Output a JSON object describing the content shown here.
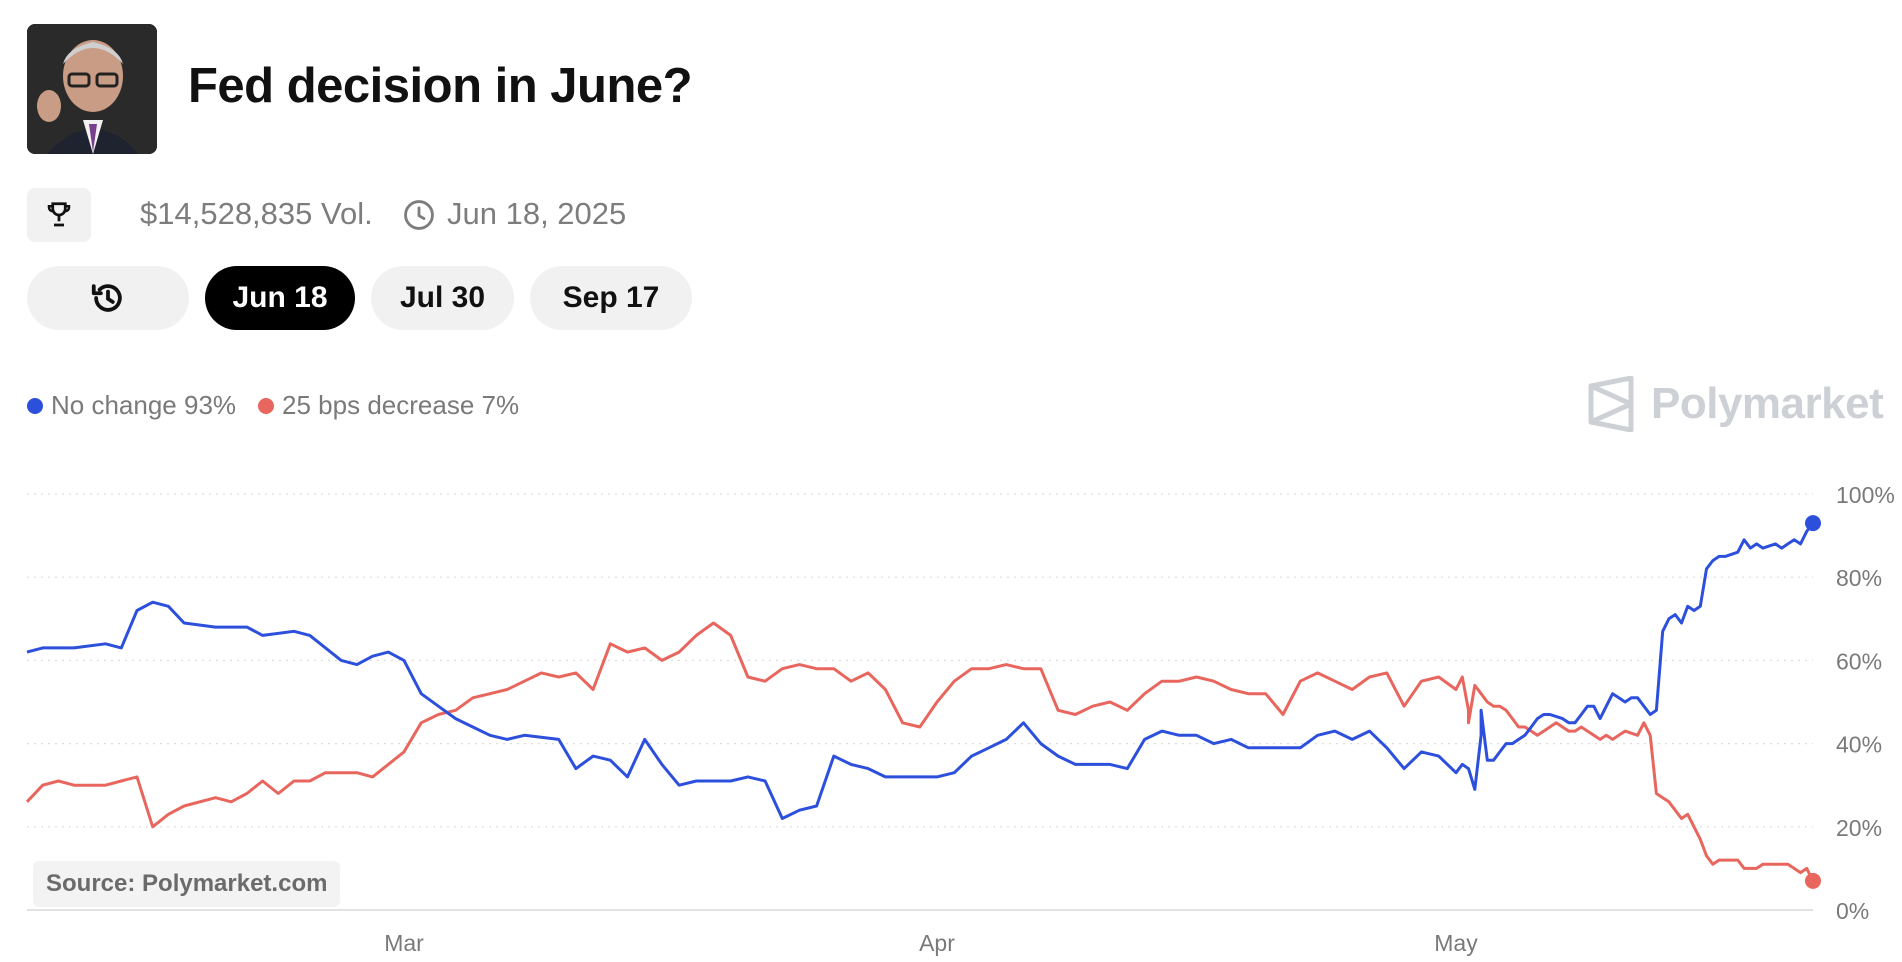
{
  "header": {
    "title": "Fed decision in June?",
    "volume": "$14,528,835 Vol.",
    "end_date": "Jun 18, 2025"
  },
  "icons": {
    "trophy": "trophy-icon",
    "clock": "clock-icon",
    "history": "history-icon",
    "brand": "polymarket-logo-icon"
  },
  "tabs": [
    {
      "label": "",
      "icon": "history-icon",
      "active": false
    },
    {
      "label": "Jun 18",
      "active": true
    },
    {
      "label": "Jul 30",
      "active": false
    },
    {
      "label": "Sep 17",
      "active": false
    }
  ],
  "brand": "Polymarket",
  "source": "Source: Polymarket.com",
  "colors": {
    "no_change": "#2d50dc",
    "decrease": "#e8665d",
    "grid": "#dcdcdc",
    "tick": "#7a7a7a"
  },
  "chart_data": {
    "type": "line",
    "x_start": "2025-02-05",
    "x_end": "2025-05-23",
    "x_ticks": [
      {
        "date": "2025-03-01",
        "label": "Mar"
      },
      {
        "date": "2025-04-01",
        "label": "Apr"
      },
      {
        "date": "2025-05-01",
        "label": "May"
      }
    ],
    "y_ticks": [
      "0%",
      "20%",
      "40%",
      "60%",
      "80%",
      "100%"
    ],
    "ylim": [
      0,
      100
    ],
    "grid": true,
    "legend_placement": "top-left",
    "series": [
      {
        "name": "No change",
        "label": "No change 93%",
        "color": "#2d50dc",
        "points": [
          [
            "2025-02-05",
            62
          ],
          [
            "2025-02-06",
            63
          ],
          [
            "2025-02-08",
            63
          ],
          [
            "2025-02-10",
            64
          ],
          [
            "2025-02-11",
            63
          ],
          [
            "2025-02-12",
            72
          ],
          [
            "2025-02-13",
            74
          ],
          [
            "2025-02-14",
            73
          ],
          [
            "2025-02-15",
            69
          ],
          [
            "2025-02-17",
            68
          ],
          [
            "2025-02-19",
            68
          ],
          [
            "2025-02-20",
            66
          ],
          [
            "2025-02-22",
            67
          ],
          [
            "2025-02-23",
            66
          ],
          [
            "2025-02-24",
            63
          ],
          [
            "2025-02-25",
            60
          ],
          [
            "2025-02-26",
            59
          ],
          [
            "2025-02-27",
            61
          ],
          [
            "2025-02-28",
            62
          ],
          [
            "2025-03-01",
            60
          ],
          [
            "2025-03-02",
            52
          ],
          [
            "2025-03-03",
            49
          ],
          [
            "2025-03-04",
            46
          ],
          [
            "2025-03-05",
            44
          ],
          [
            "2025-03-06",
            42
          ],
          [
            "2025-03-07",
            41
          ],
          [
            "2025-03-08",
            42
          ],
          [
            "2025-03-10",
            41
          ],
          [
            "2025-03-11",
            34
          ],
          [
            "2025-03-12",
            37
          ],
          [
            "2025-03-13",
            36
          ],
          [
            "2025-03-14",
            32
          ],
          [
            "2025-03-15",
            41
          ],
          [
            "2025-03-16",
            35
          ],
          [
            "2025-03-17",
            30
          ],
          [
            "2025-03-18",
            31
          ],
          [
            "2025-03-20",
            31
          ],
          [
            "2025-03-21",
            32
          ],
          [
            "2025-03-22",
            31
          ],
          [
            "2025-03-23",
            22
          ],
          [
            "2025-03-24",
            24
          ],
          [
            "2025-03-25",
            25
          ],
          [
            "2025-03-26",
            37
          ],
          [
            "2025-03-27",
            35
          ],
          [
            "2025-03-28",
            34
          ],
          [
            "2025-03-29",
            32
          ],
          [
            "2025-03-31",
            32
          ],
          [
            "2025-04-01",
            32
          ],
          [
            "2025-04-02",
            33
          ],
          [
            "2025-04-03",
            37
          ],
          [
            "2025-04-04",
            39
          ],
          [
            "2025-04-05",
            41
          ],
          [
            "2025-04-06",
            45
          ],
          [
            "2025-04-07",
            40
          ],
          [
            "2025-04-08",
            37
          ],
          [
            "2025-04-09",
            35
          ],
          [
            "2025-04-11",
            35
          ],
          [
            "2025-04-12",
            34
          ],
          [
            "2025-04-13",
            41
          ],
          [
            "2025-04-14",
            43
          ],
          [
            "2025-04-15",
            42
          ],
          [
            "2025-04-16",
            42
          ],
          [
            "2025-04-17",
            40
          ],
          [
            "2025-04-18",
            41
          ],
          [
            "2025-04-19",
            39
          ],
          [
            "2025-04-20",
            39
          ],
          [
            "2025-04-22",
            39
          ],
          [
            "2025-04-23",
            42
          ],
          [
            "2025-04-24",
            43
          ],
          [
            "2025-04-25",
            41
          ],
          [
            "2025-04-26",
            43
          ],
          [
            "2025-04-27",
            39
          ],
          [
            "2025-04-28",
            34
          ],
          [
            "2025-04-29",
            38
          ],
          [
            "2025-04-30",
            37
          ],
          [
            "2025-05-01",
            33
          ],
          [
            "2025-05-02",
            35
          ],
          [
            "2025-05-03",
            34
          ],
          [
            "2025-05-04",
            29
          ],
          [
            "2025-05-05",
            42
          ],
          [
            "2025-05-05",
            48
          ],
          [
            "2025-05-06",
            36
          ],
          [
            "2025-05-07",
            36
          ],
          [
            "2025-05-08",
            38
          ],
          [
            "2025-05-09",
            40
          ],
          [
            "2025-05-10",
            40
          ],
          [
            "2025-05-11",
            41
          ],
          [
            "2025-05-12",
            42
          ],
          [
            "2025-05-13",
            44
          ],
          [
            "2025-05-14",
            46
          ],
          [
            "2025-05-15",
            47
          ],
          [
            "2025-05-16",
            47
          ],
          [
            "2025-05-18",
            46
          ],
          [
            "2025-05-19",
            45
          ],
          [
            "2025-05-20",
            45
          ],
          [
            "2025-05-21",
            47
          ],
          [
            "2025-05-22",
            49
          ],
          [
            "2025-05-23",
            49
          ],
          [
            "2025-05-24",
            46
          ],
          [
            "2025-05-25",
            49
          ],
          [
            "2025-05-26",
            52
          ],
          [
            "2025-05-27",
            51
          ],
          [
            "2025-05-28",
            50
          ],
          [
            "2025-05-29",
            51
          ],
          [
            "2025-05-30",
            51
          ],
          [
            "2025-06-01",
            47
          ],
          [
            "2025-06-02",
            48
          ],
          [
            "2025-06-03",
            67
          ],
          [
            "2025-06-04",
            70
          ],
          [
            "2025-06-05",
            71
          ],
          [
            "2025-06-06",
            69
          ],
          [
            "2025-06-07",
            73
          ],
          [
            "2025-06-08",
            72
          ],
          [
            "2025-06-09",
            73
          ],
          [
            "2025-06-10",
            82
          ],
          [
            "2025-06-11",
            84
          ],
          [
            "2025-06-12",
            85
          ],
          [
            "2025-06-13",
            85
          ],
          [
            "2025-06-15",
            86
          ],
          [
            "2025-06-16",
            89
          ],
          [
            "2025-06-17",
            87
          ],
          [
            "2025-06-18",
            88
          ],
          [
            "2025-06-19",
            87
          ],
          [
            "2025-06-21",
            88
          ],
          [
            "2025-06-22",
            87
          ],
          [
            "2025-06-23",
            88
          ],
          [
            "2025-06-24",
            89
          ],
          [
            "2025-06-25",
            88
          ],
          [
            "2025-06-26",
            91
          ],
          [
            "2025-06-27",
            93
          ]
        ]
      },
      {
        "name": "25 bps decrease",
        "label": "25 bps decrease 7%",
        "color": "#e8665d",
        "points": [
          [
            "2025-02-05",
            26
          ],
          [
            "2025-02-06",
            30
          ],
          [
            "2025-02-07",
            31
          ],
          [
            "2025-02-08",
            30
          ],
          [
            "2025-02-10",
            30
          ],
          [
            "2025-02-11",
            31
          ],
          [
            "2025-02-12",
            32
          ],
          [
            "2025-02-13",
            20
          ],
          [
            "2025-02-14",
            23
          ],
          [
            "2025-02-15",
            25
          ],
          [
            "2025-02-17",
            27
          ],
          [
            "2025-02-18",
            26
          ],
          [
            "2025-02-19",
            28
          ],
          [
            "2025-02-20",
            31
          ],
          [
            "2025-02-21",
            28
          ],
          [
            "2025-02-22",
            31
          ],
          [
            "2025-02-23",
            31
          ],
          [
            "2025-02-24",
            33
          ],
          [
            "2025-02-26",
            33
          ],
          [
            "2025-02-27",
            32
          ],
          [
            "2025-02-28",
            35
          ],
          [
            "2025-03-01",
            38
          ],
          [
            "2025-03-02",
            45
          ],
          [
            "2025-03-03",
            47
          ],
          [
            "2025-03-04",
            48
          ],
          [
            "2025-03-05",
            51
          ],
          [
            "2025-03-06",
            52
          ],
          [
            "2025-03-07",
            53
          ],
          [
            "2025-03-08",
            55
          ],
          [
            "2025-03-09",
            57
          ],
          [
            "2025-03-10",
            56
          ],
          [
            "2025-03-11",
            57
          ],
          [
            "2025-03-12",
            53
          ],
          [
            "2025-03-13",
            64
          ],
          [
            "2025-03-14",
            62
          ],
          [
            "2025-03-15",
            63
          ],
          [
            "2025-03-16",
            60
          ],
          [
            "2025-03-17",
            62
          ],
          [
            "2025-03-18",
            66
          ],
          [
            "2025-03-19",
            69
          ],
          [
            "2025-03-20",
            66
          ],
          [
            "2025-03-21",
            56
          ],
          [
            "2025-03-22",
            55
          ],
          [
            "2025-03-23",
            58
          ],
          [
            "2025-03-24",
            59
          ],
          [
            "2025-03-25",
            58
          ],
          [
            "2025-03-26",
            58
          ],
          [
            "2025-03-27",
            55
          ],
          [
            "2025-03-28",
            57
          ],
          [
            "2025-03-29",
            53
          ],
          [
            "2025-03-30",
            45
          ],
          [
            "2025-03-31",
            44
          ],
          [
            "2025-04-01",
            50
          ],
          [
            "2025-04-02",
            55
          ],
          [
            "2025-04-03",
            58
          ],
          [
            "2025-04-04",
            58
          ],
          [
            "2025-04-05",
            59
          ],
          [
            "2025-04-06",
            58
          ],
          [
            "2025-04-07",
            58
          ],
          [
            "2025-04-08",
            48
          ],
          [
            "2025-04-09",
            47
          ],
          [
            "2025-04-10",
            49
          ],
          [
            "2025-04-11",
            50
          ],
          [
            "2025-04-12",
            48
          ],
          [
            "2025-04-13",
            52
          ],
          [
            "2025-04-14",
            55
          ],
          [
            "2025-04-15",
            55
          ],
          [
            "2025-04-16",
            56
          ],
          [
            "2025-04-17",
            55
          ],
          [
            "2025-04-18",
            53
          ],
          [
            "2025-04-19",
            52
          ],
          [
            "2025-04-20",
            52
          ],
          [
            "2025-04-21",
            47
          ],
          [
            "2025-04-22",
            55
          ],
          [
            "2025-04-23",
            57
          ],
          [
            "2025-04-24",
            55
          ],
          [
            "2025-04-25",
            53
          ],
          [
            "2025-04-26",
            56
          ],
          [
            "2025-04-27",
            57
          ],
          [
            "2025-04-28",
            49
          ],
          [
            "2025-04-29",
            55
          ],
          [
            "2025-04-30",
            56
          ],
          [
            "2025-05-01",
            53
          ],
          [
            "2025-05-02",
            56
          ],
          [
            "2025-05-03",
            48
          ],
          [
            "2025-05-03",
            45
          ],
          [
            "2025-05-04",
            54
          ],
          [
            "2025-05-05",
            52
          ],
          [
            "2025-05-06",
            50
          ],
          [
            "2025-05-07",
            49
          ],
          [
            "2025-05-08",
            49
          ],
          [
            "2025-05-09",
            48
          ],
          [
            "2025-05-10",
            46
          ],
          [
            "2025-05-11",
            44
          ],
          [
            "2025-05-12",
            44
          ],
          [
            "2025-05-13",
            43
          ],
          [
            "2025-05-14",
            42
          ],
          [
            "2025-05-15",
            43
          ],
          [
            "2025-05-16",
            44
          ],
          [
            "2025-05-17",
            45
          ],
          [
            "2025-05-18",
            44
          ],
          [
            "2025-05-19",
            43
          ],
          [
            "2025-05-20",
            43
          ],
          [
            "2025-05-21",
            44
          ],
          [
            "2025-05-22",
            43
          ],
          [
            "2025-05-23",
            42
          ],
          [
            "2025-05-24",
            41
          ],
          [
            "2025-05-25",
            42
          ],
          [
            "2025-05-26",
            41
          ],
          [
            "2025-05-27",
            42
          ],
          [
            "2025-05-28",
            43
          ],
          [
            "2025-05-30",
            42
          ],
          [
            "2025-05-31",
            45
          ],
          [
            "2025-06-01",
            42
          ],
          [
            "2025-06-02",
            28
          ],
          [
            "2025-06-03",
            27
          ],
          [
            "2025-06-04",
            26
          ],
          [
            "2025-06-05",
            24
          ],
          [
            "2025-06-06",
            22
          ],
          [
            "2025-06-07",
            23
          ],
          [
            "2025-06-08",
            20
          ],
          [
            "2025-06-09",
            17
          ],
          [
            "2025-06-10",
            13
          ],
          [
            "2025-06-11",
            11
          ],
          [
            "2025-06-12",
            12
          ],
          [
            "2025-06-13",
            12
          ],
          [
            "2025-06-14",
            12
          ],
          [
            "2025-06-15",
            12
          ],
          [
            "2025-06-16",
            10
          ],
          [
            "2025-06-17",
            10
          ],
          [
            "2025-06-18",
            10
          ],
          [
            "2025-06-19",
            11
          ],
          [
            "2025-06-20",
            11
          ],
          [
            "2025-06-21",
            11
          ],
          [
            "2025-06-22",
            11
          ],
          [
            "2025-06-23",
            11
          ],
          [
            "2025-06-24",
            10
          ],
          [
            "2025-06-25",
            9
          ],
          [
            "2025-06-26",
            10
          ],
          [
            "2025-06-27",
            7
          ]
        ]
      }
    ]
  }
}
